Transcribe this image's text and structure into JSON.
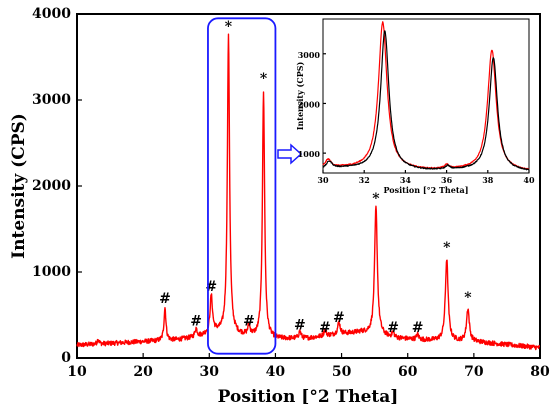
{
  "chart_data": {
    "type": "line",
    "xlabel": "Position [°2 Theta]",
    "ylabel": "Intensity (CPS)",
    "xlim": [
      10,
      80
    ],
    "ylim": [
      0,
      4000
    ],
    "xticks": [
      10,
      20,
      30,
      40,
      50,
      60,
      70,
      80
    ],
    "yticks": [
      0,
      1000,
      2000,
      3000,
      4000
    ],
    "grid": false,
    "series": [
      {
        "color": "#ff0000",
        "baseline": [
          [
            10,
            150
          ],
          [
            20,
            190
          ],
          [
            25,
            210
          ],
          [
            28,
            240
          ],
          [
            31,
            300
          ],
          [
            35,
            260
          ],
          [
            40,
            220
          ],
          [
            45,
            230
          ],
          [
            50,
            280
          ],
          [
            53,
            300
          ],
          [
            58,
            230
          ],
          [
            62,
            210
          ],
          [
            70,
            190
          ],
          [
            80,
            120
          ]
        ],
        "peaks": [
          {
            "x": 13.2,
            "h": 60,
            "w": 0.15
          },
          {
            "x": 23.3,
            "h": 380,
            "w": 0.18
          },
          {
            "x": 28.0,
            "h": 100,
            "w": 0.2
          },
          {
            "x": 30.3,
            "h": 430,
            "w": 0.22
          },
          {
            "x": 32.9,
            "h": 3450,
            "w": 0.2
          },
          {
            "x": 36.0,
            "h": 110,
            "w": 0.2
          },
          {
            "x": 38.2,
            "h": 2840,
            "w": 0.2
          },
          {
            "x": 43.7,
            "h": 80,
            "w": 0.2
          },
          {
            "x": 47.5,
            "h": 70,
            "w": 0.2
          },
          {
            "x": 49.6,
            "h": 140,
            "w": 0.22
          },
          {
            "x": 55.2,
            "h": 1480,
            "w": 0.25
          },
          {
            "x": 57.8,
            "h": 60,
            "w": 0.2
          },
          {
            "x": 61.5,
            "h": 60,
            "w": 0.2
          },
          {
            "x": 65.9,
            "h": 950,
            "w": 0.25
          },
          {
            "x": 69.1,
            "h": 380,
            "w": 0.25
          }
        ]
      }
    ],
    "annotations": [
      {
        "text": "*",
        "x": 32.9,
        "y": 3800
      },
      {
        "text": "*",
        "x": 38.2,
        "y": 3200
      },
      {
        "text": "*",
        "x": 55.2,
        "y": 1800
      },
      {
        "text": "*",
        "x": 65.9,
        "y": 1230
      },
      {
        "text": "*",
        "x": 69.1,
        "y": 650
      },
      {
        "text": "#",
        "x": 23.3,
        "y": 640
      },
      {
        "text": "#",
        "x": 28.0,
        "y": 380
      },
      {
        "text": "#",
        "x": 30.3,
        "y": 780
      },
      {
        "text": "#",
        "x": 36.0,
        "y": 380
      },
      {
        "text": "#",
        "x": 43.7,
        "y": 330
      },
      {
        "text": "#",
        "x": 47.5,
        "y": 300
      },
      {
        "text": "#",
        "x": 49.6,
        "y": 420
      },
      {
        "text": "#",
        "x": 57.8,
        "y": 300
      },
      {
        "text": "#",
        "x": 61.5,
        "y": 300
      }
    ],
    "highlight_range": {
      "x": [
        29.8,
        40.0
      ],
      "y": [
        50,
        3950
      ],
      "color": "#1a1aff"
    },
    "inset": {
      "xlabel": "Position [°2 Theta]",
      "ylabel": "Intensity (CPS)",
      "xlim": [
        30,
        40
      ],
      "ylim": [
        600,
        3700
      ],
      "xticks": [
        30,
        32,
        34,
        36,
        38,
        40
      ],
      "yticks": [
        1000,
        2000,
        3000
      ],
      "series": [
        {
          "color": "#ff0000",
          "baseline": [
            [
              30,
              680
            ],
            [
              31,
              700
            ],
            [
              33,
              680
            ],
            [
              35,
              650
            ],
            [
              37,
              660
            ],
            [
              39,
              640
            ],
            [
              40,
              630
            ]
          ],
          "peaks": [
            {
              "x": 30.25,
              "h": 170,
              "w": 0.18
            },
            {
              "x": 32.9,
              "h": 2950,
              "w": 0.25
            },
            {
              "x": 36.0,
              "h": 80,
              "w": 0.12
            },
            {
              "x": 38.2,
              "h": 2420,
              "w": 0.25
            }
          ]
        },
        {
          "color": "#000000",
          "baseline": [
            [
              30,
              660
            ],
            [
              31,
              690
            ],
            [
              33,
              670
            ],
            [
              35,
              640
            ],
            [
              37,
              650
            ],
            [
              39,
              630
            ],
            [
              40,
              620
            ]
          ],
          "peaks": [
            {
              "x": 30.3,
              "h": 150,
              "w": 0.18
            },
            {
              "x": 33.0,
              "h": 2780,
              "w": 0.24
            },
            {
              "x": 36.05,
              "h": 70,
              "w": 0.12
            },
            {
              "x": 38.27,
              "h": 2280,
              "w": 0.24
            }
          ]
        }
      ]
    }
  }
}
